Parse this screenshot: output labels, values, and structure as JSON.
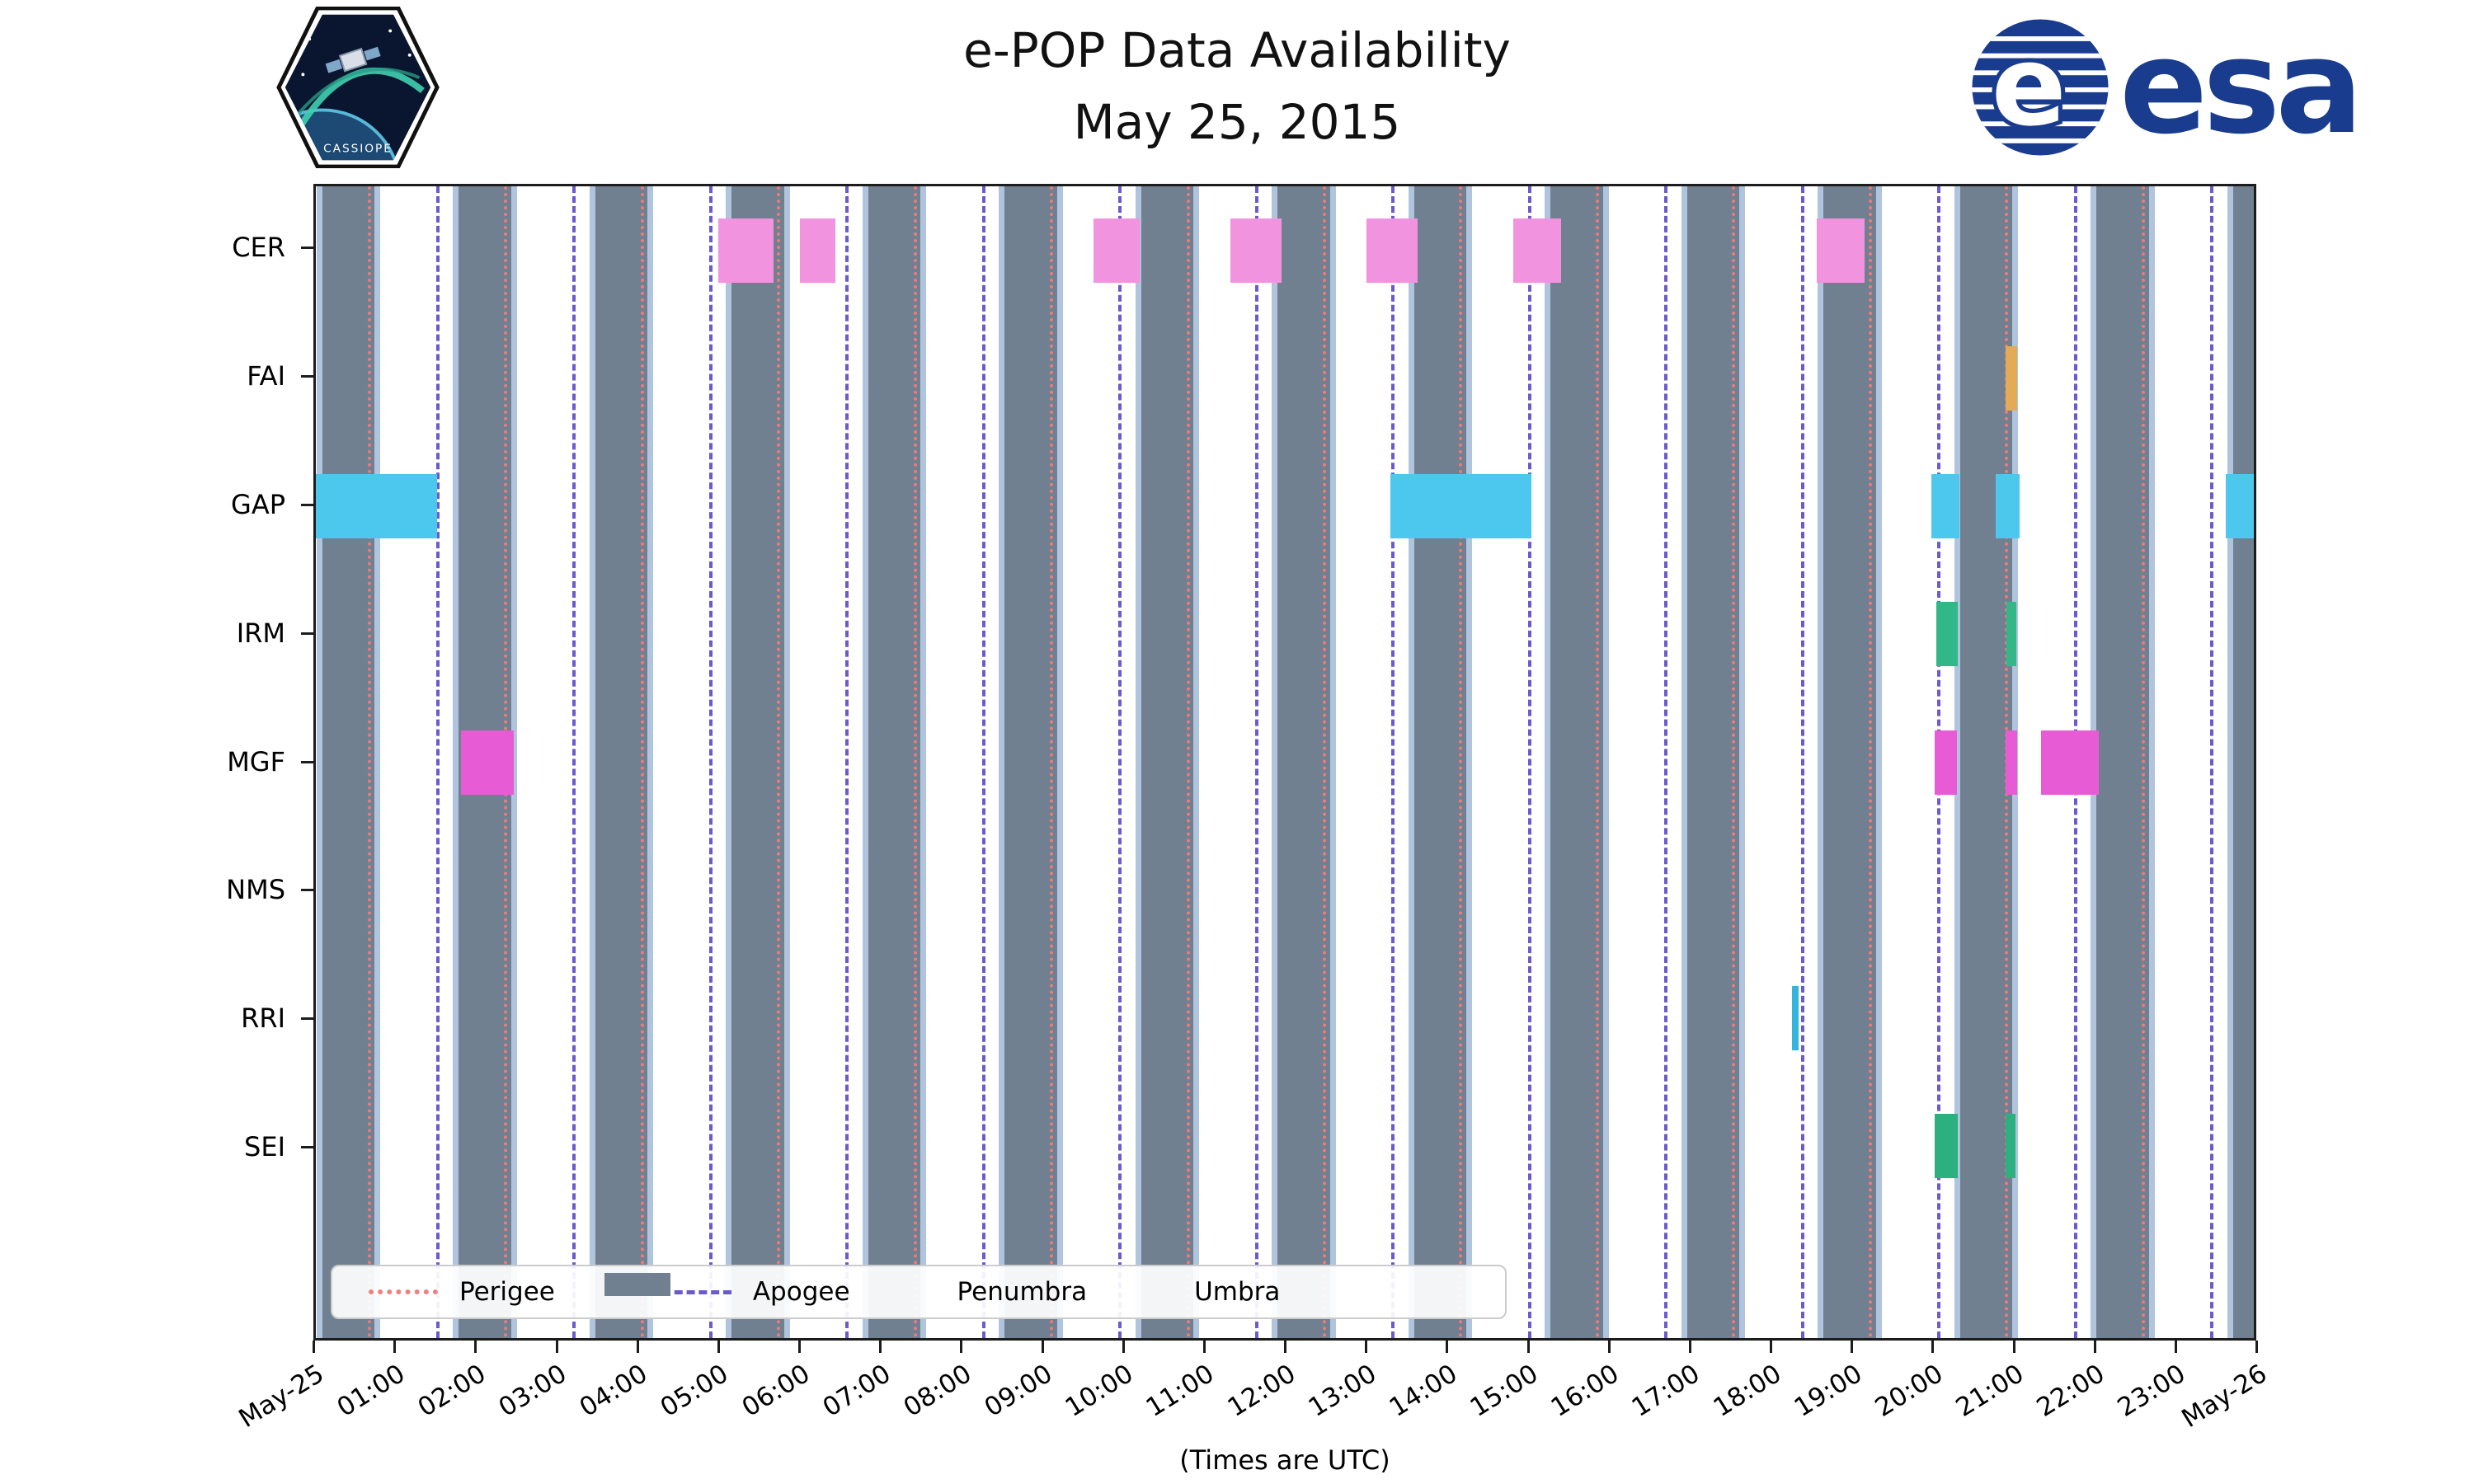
{
  "header": {
    "title": "e-POP Data Availability",
    "subtitle": "May 25, 2015"
  },
  "logos": {
    "patch_text": "CASSIOPE",
    "esa_text": "esa"
  },
  "xlabel": "(Times are UTC)",
  "legend": [
    {
      "label": "Perigee",
      "type": "dotted-line",
      "color": "#f08080"
    },
    {
      "label": "Apogee",
      "type": "dashed-line",
      "color": "#6a5acd"
    },
    {
      "label": "Penumbra",
      "type": "patch",
      "color": "#b0c4de"
    },
    {
      "label": "Umbra",
      "type": "patch",
      "color": "#708090"
    }
  ],
  "colors": {
    "umbra": "#708090",
    "penumbra": "#b0c4de",
    "perigee_line": "#ee7a7a",
    "apogee_line": "#6a5acd",
    "esa_blue": "#1a3c8e"
  },
  "chart_data": {
    "type": "gantt-availability",
    "title": "e-POP Data Availability",
    "subtitle": "May 25, 2015",
    "xlabel": "(Times are UTC)",
    "x_range_hours": [
      0,
      24
    ],
    "x_ticks": [
      "May-25",
      "01:00",
      "02:00",
      "03:00",
      "04:00",
      "05:00",
      "06:00",
      "07:00",
      "08:00",
      "09:00",
      "10:00",
      "11:00",
      "12:00",
      "13:00",
      "14:00",
      "15:00",
      "16:00",
      "17:00",
      "18:00",
      "19:00",
      "20:00",
      "21:00",
      "22:00",
      "23:00",
      "May-26"
    ],
    "rows": [
      "CER",
      "FAI",
      "GAP",
      "IRM",
      "MGF",
      "NMS",
      "RRI",
      "SEI"
    ],
    "row_colors": {
      "CER": "#f193de",
      "FAI": "#e3ab55",
      "GAP": "#4cc7ee",
      "IRM": "#31b788",
      "MGF": "#e75cd5",
      "NMS": "#999999",
      "RRI": "#35b4dc",
      "SEI": "#2cb07f"
    },
    "penumbra_pad_hours": 0.07,
    "umbra_intervals": [
      [
        0.08,
        0.73
      ],
      [
        1.77,
        2.42
      ],
      [
        3.46,
        4.11
      ],
      [
        5.15,
        5.8
      ],
      [
        6.84,
        7.49
      ],
      [
        8.53,
        9.18
      ],
      [
        10.22,
        10.87
      ],
      [
        11.91,
        12.56
      ],
      [
        13.6,
        14.25
      ],
      [
        15.29,
        15.94
      ],
      [
        16.98,
        17.63
      ],
      [
        18.67,
        19.32
      ],
      [
        20.36,
        21.01
      ],
      [
        22.05,
        22.7
      ],
      [
        23.74,
        24.0
      ]
    ],
    "perigee_hours": [
      0.66,
      2.35,
      4.04,
      5.73,
      7.42,
      9.11,
      10.8,
      12.49,
      14.18,
      15.87,
      17.56,
      19.25,
      20.94,
      22.63
    ],
    "apogee_hours": [
      1.51,
      3.2,
      4.89,
      6.58,
      8.27,
      9.96,
      11.65,
      13.34,
      15.03,
      16.72,
      18.41,
      20.1,
      21.79,
      23.48
    ],
    "bars": [
      {
        "row": "CER",
        "start": 4.98,
        "end": 5.67
      },
      {
        "row": "CER",
        "start": 5.99,
        "end": 6.43
      },
      {
        "row": "CER",
        "start": 9.63,
        "end": 10.2
      },
      {
        "row": "CER",
        "start": 11.33,
        "end": 11.96
      },
      {
        "row": "CER",
        "start": 13.01,
        "end": 13.64
      },
      {
        "row": "CER",
        "start": 14.83,
        "end": 15.42
      },
      {
        "row": "CER",
        "start": 18.59,
        "end": 19.18
      },
      {
        "row": "FAI",
        "start": 20.93,
        "end": 21.07
      },
      {
        "row": "GAP",
        "start": 0.0,
        "end": 1.5
      },
      {
        "row": "GAP",
        "start": 13.31,
        "end": 15.05
      },
      {
        "row": "GAP",
        "start": 20.01,
        "end": 20.35
      },
      {
        "row": "GAP",
        "start": 20.8,
        "end": 21.1
      },
      {
        "row": "GAP",
        "start": 23.65,
        "end": 24.0
      },
      {
        "row": "IRM",
        "start": 20.07,
        "end": 20.33
      },
      {
        "row": "IRM",
        "start": 20.94,
        "end": 21.06
      },
      {
        "row": "MGF",
        "start": 1.8,
        "end": 2.45
      },
      {
        "row": "MGF",
        "start": 20.05,
        "end": 20.32
      },
      {
        "row": "MGF",
        "start": 20.93,
        "end": 21.07
      },
      {
        "row": "MGF",
        "start": 21.37,
        "end": 22.08
      },
      {
        "row": "RRI",
        "start": 18.28,
        "end": 18.36
      },
      {
        "row": "SEI",
        "start": 20.05,
        "end": 20.33
      },
      {
        "row": "SEI",
        "start": 20.93,
        "end": 21.05
      }
    ]
  }
}
